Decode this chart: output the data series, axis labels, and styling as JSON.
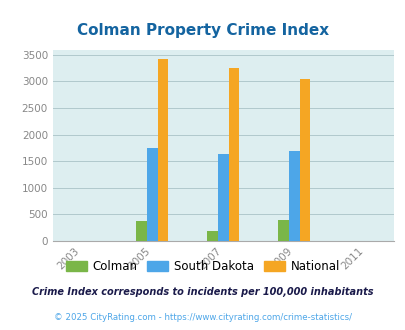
{
  "title": "Colman Property Crime Index",
  "title_color": "#1464a0",
  "years": [
    2003,
    2005,
    2007,
    2009,
    2011
  ],
  "bar_years": [
    2005,
    2007,
    2009
  ],
  "colman": [
    375,
    185,
    385
  ],
  "south_dakota": [
    1745,
    1630,
    1700
  ],
  "national": [
    3415,
    3260,
    3040
  ],
  "colman_color": "#7ab648",
  "sd_color": "#4da6e8",
  "national_color": "#f5a623",
  "bg_color": "#ddeef0",
  "ylabel_vals": [
    0,
    500,
    1000,
    1500,
    2000,
    2500,
    3000,
    3500
  ],
  "legend_labels": [
    "Colman",
    "South Dakota",
    "National"
  ],
  "footnote1": "Crime Index corresponds to incidents per 100,000 inhabitants",
  "footnote2": "© 2025 CityRating.com - https://www.cityrating.com/crime-statistics/",
  "footnote1_color": "#1a1a4a",
  "footnote2_color": "#4da6e8",
  "grid_color": "#b0c8cc",
  "tick_color": "#888888",
  "ylim": [
    0,
    3600
  ]
}
